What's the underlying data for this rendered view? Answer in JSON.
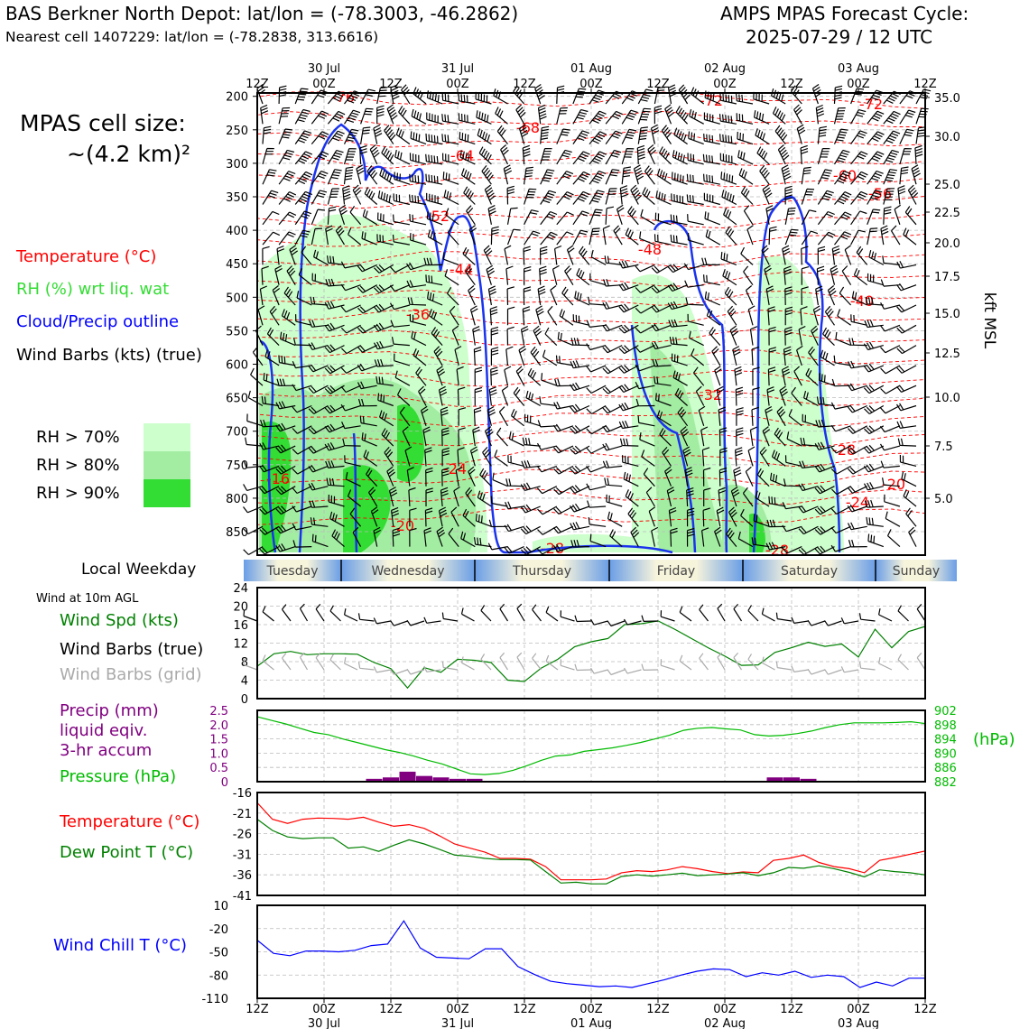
{
  "header": {
    "station": "BAS Berkner North Depot: lat/lon = (-78.3003, -46.2862)",
    "nearest": "Nearest cell 1407229: lat/lon = (-78.2838, 313.6616)",
    "cycle_title": "AMPS MPAS Forecast Cycle:",
    "cycle_time": "2025-07-29 / 12 UTC"
  },
  "sidebar": {
    "cell_size": "MPAS cell size:",
    "cell_size_value": "~(4.2 km)²",
    "legend": [
      {
        "label": "Temperature (°C)",
        "color": "#ff0000"
      },
      {
        "label": "RH (%) wrt liq. wat",
        "color": "#33dd33"
      },
      {
        "label": "Cloud/Precip outline",
        "color": "#0000ff"
      },
      {
        "label": "Wind Barbs (kts) (true)",
        "color": "#000000"
      }
    ],
    "rh_legend": [
      {
        "label": "RH > 70%",
        "color": "#ccffcc"
      },
      {
        "label": "RH > 80%",
        "color": "#a3eda3"
      },
      {
        "label": "RH > 90%",
        "color": "#33dd33"
      }
    ]
  },
  "colors": {
    "temperature": "#ff0000",
    "dewpoint": "#008000",
    "pressure": "#00bb00",
    "precip": "#800080",
    "windchill": "#0000ff",
    "cloud": "#1a33ee",
    "grid": "#bbbbbb"
  },
  "time_axis": {
    "top_ticks": [
      "12Z",
      "00Z",
      "12Z",
      "00Z",
      "12Z",
      "00Z",
      "12Z",
      "00Z",
      "12Z",
      "00Z",
      "12Z"
    ],
    "date_labels": [
      "30 Jul",
      "31 Jul",
      "01 Aug",
      "02 Aug",
      "03 Aug"
    ],
    "bottom_ticks": [
      "12Z",
      "00Z",
      "12Z",
      "00Z",
      "12Z",
      "00Z",
      "12Z",
      "00Z",
      "12Z",
      "00Z",
      "12Z"
    ]
  },
  "weekday": {
    "title": "Local Weekday",
    "days": [
      "Tuesday",
      "Wednesday",
      "Thursday",
      "Friday",
      "Saturday",
      "Sunday"
    ]
  },
  "chart_data": [
    {
      "type": "heatmap",
      "title": "",
      "ylabel_left": "",
      "ylabel_right": "kft MSL",
      "pressure_ticks": [
        200,
        250,
        300,
        350,
        400,
        450,
        500,
        550,
        600,
        650,
        700,
        750,
        800,
        850
      ],
      "height_ticks": [
        "35.0",
        "30.0",
        "25.0",
        "22.5",
        "20.0",
        "17.5",
        "15.0",
        "12.5",
        "10.0",
        "7.5",
        "5.0"
      ],
      "temperature_contour_labels": [
        "-76",
        "-72",
        "-72",
        "-68",
        "-64",
        "-60",
        "-56",
        "-52",
        "-48",
        "-44",
        "-40",
        "-36",
        "-32",
        "-28",
        "-24",
        "-24",
        "-20",
        "-20",
        "-16",
        "-28",
        "-28"
      ],
      "description_series": [
        "Temperature (°C)",
        "RH (%) wrt liq. wat",
        "Cloud/Precip outline",
        "Wind Barbs (kts) (true)"
      ]
    },
    {
      "type": "line",
      "title": "Wind at 10m AGL",
      "ylim": [
        0,
        24
      ],
      "yticks": [
        0,
        4,
        8,
        12,
        16,
        20,
        24
      ],
      "x_hours": [
        0,
        3,
        6,
        9,
        12,
        15,
        18,
        21,
        24,
        27,
        30,
        33,
        36,
        39,
        42,
        45,
        48,
        51,
        54,
        57,
        60,
        63,
        66,
        69,
        72,
        75,
        78,
        81,
        84,
        87,
        90,
        93,
        96,
        99,
        102,
        105,
        108,
        111,
        114,
        117,
        120
      ],
      "series": [
        {
          "name": "Wind Spd (kts)",
          "color": "#008000",
          "values": [
            7,
            9.7,
            10.2,
            9.5,
            9.7,
            9.7,
            9.6,
            7.8,
            6.5,
            2.3,
            6.7,
            5.7,
            8.5,
            8.3,
            7.8,
            4,
            3.7,
            6.6,
            8.5,
            11.2,
            12.3,
            13,
            16,
            16.2,
            16.8,
            15,
            13,
            11,
            9.2,
            7.2,
            7.3,
            10,
            11,
            12.2,
            11.3,
            11.8,
            9,
            15,
            11,
            14.5,
            15.6
          ]
        },
        {
          "name": "Wind Barbs (true)",
          "color": "#000000",
          "values": []
        },
        {
          "name": "Wind Barbs (grid)",
          "color": "#aaaaaa",
          "values": []
        }
      ]
    },
    {
      "type": "bar",
      "title": "",
      "ylabel_left": "Precip (mm) liquid eqiv. 3-hr accum",
      "ylabel_right": "(hPa)",
      "ylim": [
        0,
        2.5
      ],
      "yticks_left": [
        "0",
        "0.5",
        "1.0",
        "1.5",
        "2.0",
        "2.5"
      ],
      "yticks_right": [
        "882",
        "886",
        "890",
        "894",
        "898",
        "902"
      ],
      "precip_x_hours": [
        21,
        24,
        27,
        30,
        33,
        36,
        39,
        93,
        96,
        99
      ],
      "precip_values": [
        0.1,
        0.15,
        0.35,
        0.2,
        0.15,
        0.1,
        0.1,
        0.15,
        0.15,
        0.1
      ],
      "pressure_hpa": [
        900.2,
        899.2,
        898.2,
        897.0,
        895.8,
        895.2,
        894.0,
        893.0,
        892.0,
        891.0,
        890.2,
        889.2,
        888.0,
        887.0,
        885.6,
        884.2,
        884.0,
        884.3,
        885.2,
        886.5,
        888.0,
        889.2,
        889.5,
        890.5,
        891.0,
        891.5,
        892.2,
        893.0,
        894.0,
        895.0,
        896.4,
        897.0,
        897.2,
        896.8,
        896.5,
        895.2,
        894.8,
        895.0,
        895.5,
        896.2,
        897.2,
        898.0,
        898.5,
        898.5,
        898.5,
        898.6,
        898.8,
        898.3
      ]
    },
    {
      "type": "line",
      "title": "",
      "ylim": [
        -41,
        -16
      ],
      "yticks": [
        -41,
        -36,
        -31,
        -26,
        -21,
        -16
      ],
      "series": [
        {
          "name": "Temperature (°C)",
          "color": "#ff0000",
          "values": [
            -18.5,
            -22.5,
            -23.5,
            -22.5,
            -22.2,
            -22.3,
            -22.5,
            -22,
            -23.2,
            -24.2,
            -23.8,
            -24.7,
            -26.5,
            -28.5,
            -29.5,
            -30.5,
            -32,
            -32,
            -32.2,
            -34,
            -37.2,
            -37.2,
            -37.2,
            -37,
            -35.5,
            -35,
            -35.2,
            -34.8,
            -34,
            -34.5,
            -35.2,
            -35.7,
            -35.3,
            -35.5,
            -32.5,
            -32,
            -31.2,
            -33,
            -34,
            -34.5,
            -35.5,
            -32.5,
            -31.8,
            -31,
            -30.2
          ]
        },
        {
          "name": "Dew Point T (°C)",
          "color": "#008000",
          "values": [
            -22.5,
            -25.2,
            -26.8,
            -27.2,
            -27,
            -27,
            -29.5,
            -29.2,
            -30.3,
            -28.8,
            -27.5,
            -28.5,
            -29.8,
            -31.2,
            -31.5,
            -32,
            -32.3,
            -32.3,
            -32.4,
            -35.2,
            -38,
            -37.8,
            -38.2,
            -38.2,
            -36.4,
            -36,
            -36.3,
            -36,
            -35.6,
            -36.2,
            -36,
            -35.8,
            -35.5,
            -36.2,
            -35.5,
            -34.2,
            -34.4,
            -33.8,
            -34.5,
            -35.4,
            -36.5,
            -34.8,
            -35.2,
            -35.5,
            -36
          ]
        }
      ]
    },
    {
      "type": "line",
      "title": "",
      "ylim": [
        -110,
        10
      ],
      "yticks": [
        -110,
        -80,
        -50,
        -20,
        10
      ],
      "series": [
        {
          "name": "Wind Chill T (°C)",
          "color": "#0000ff",
          "values": [
            -35,
            -52,
            -55,
            -49,
            -49,
            -50,
            -48,
            -42,
            -40,
            -10,
            -45,
            -57,
            -58,
            -59,
            -46,
            -46,
            -69,
            -79,
            -88,
            -91,
            -93,
            -95,
            -94,
            -96,
            -91,
            -86,
            -80,
            -75,
            -72,
            -73,
            -82,
            -77,
            -80,
            -75,
            -83,
            -80,
            -82,
            -96,
            -89,
            -94,
            -84,
            -84
          ]
        }
      ]
    }
  ],
  "lower_panels": {
    "wind_title": "Wind at 10m AGL",
    "wind_labels": [
      "Wind Spd (kts)",
      "Wind Barbs (true)",
      "Wind Barbs (grid)"
    ],
    "precip_labels": [
      "Precip (mm)",
      "liquid eqiv.",
      "3-hr accum"
    ],
    "pressure_label": "Pressure (hPa)",
    "hpa_unit": "(hPa)",
    "temp_labels": [
      "Temperature (°C)",
      "Dew Point T (°C)"
    ],
    "windchill_label": "Wind Chill T (°C)"
  }
}
